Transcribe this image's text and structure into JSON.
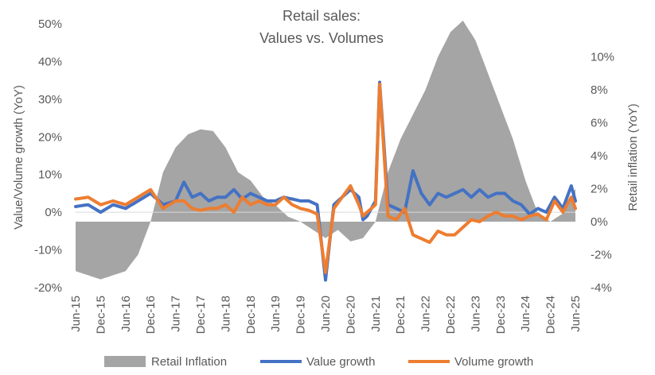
{
  "chart_data": {
    "type": "line",
    "title_lines": [
      "Retail sales:",
      "Values vs. Volumes"
    ],
    "ylabel_left": "Value/Volume  growth (YoY)",
    "ylabel_right": "Retail inflation (YoY)",
    "ylim_left": [
      -20,
      50
    ],
    "ylim_right": [
      -4,
      12
    ],
    "yticks_left": [
      "-20%",
      "-10%",
      "0%",
      "10%",
      "20%",
      "30%",
      "40%",
      "50%"
    ],
    "yticks_right": [
      "-4%",
      "-2%",
      "0%",
      "2%",
      "4%",
      "6%",
      "8%",
      "10%"
    ],
    "xticks": [
      "Jun-15",
      "Dec-15",
      "Jun-16",
      "Dec-16",
      "Jun-17",
      "Dec-17",
      "Jun-18",
      "Dec-18",
      "Jun-19",
      "Dec-19",
      "Jun-20",
      "Dec-20",
      "Jun-21",
      "Dec-21",
      "Jun-22",
      "Dec-22",
      "Jun-23",
      "Dec-23",
      "Jun-24",
      "Dec-24",
      "Jun-25"
    ],
    "legend_position": "bottom",
    "grid": false,
    "colors": {
      "inflation": "#a5a5a5",
      "value": "#4472c4",
      "volume": "#ed7d31"
    },
    "x_start": "Jun-15",
    "months": 121,
    "series": [
      {
        "name": "Retail Inflation",
        "kind": "area",
        "axis": "right",
        "keypoints": [
          [
            0,
            -3
          ],
          [
            6,
            -3.5
          ],
          [
            12,
            -3
          ],
          [
            15,
            -2
          ],
          [
            18,
            0
          ],
          [
            21,
            3
          ],
          [
            24,
            4.5
          ],
          [
            27,
            5.3
          ],
          [
            30,
            5.6
          ],
          [
            33,
            5.5
          ],
          [
            36,
            4.5
          ],
          [
            39,
            3
          ],
          [
            42,
            2.5
          ],
          [
            45,
            1.5
          ],
          [
            48,
            1
          ],
          [
            51,
            0.3
          ],
          [
            54,
            0
          ],
          [
            57,
            -0.5
          ],
          [
            60,
            -1
          ],
          [
            63,
            -0.5
          ],
          [
            66,
            -1.2
          ],
          [
            69,
            -1
          ],
          [
            72,
            0
          ],
          [
            75,
            3
          ],
          [
            78,
            5
          ],
          [
            81,
            6.5
          ],
          [
            84,
            8
          ],
          [
            87,
            10
          ],
          [
            90,
            11.5
          ],
          [
            93,
            12.2
          ],
          [
            96,
            11
          ],
          [
            99,
            9
          ],
          [
            102,
            7
          ],
          [
            105,
            5
          ],
          [
            108,
            2.5
          ],
          [
            111,
            0.5
          ],
          [
            114,
            0
          ],
          [
            117,
            0.5
          ],
          [
            120,
            2
          ]
        ]
      },
      {
        "name": "Value growth",
        "kind": "line",
        "axis": "left",
        "keypoints": [
          [
            0,
            1.5
          ],
          [
            3,
            2
          ],
          [
            6,
            0
          ],
          [
            9,
            2
          ],
          [
            12,
            1
          ],
          [
            15,
            3
          ],
          [
            18,
            5
          ],
          [
            21,
            2
          ],
          [
            24,
            3
          ],
          [
            26,
            8
          ],
          [
            28,
            4
          ],
          [
            30,
            5
          ],
          [
            32,
            3
          ],
          [
            34,
            4
          ],
          [
            36,
            4
          ],
          [
            38,
            6
          ],
          [
            40,
            3.5
          ],
          [
            42,
            5
          ],
          [
            44,
            4
          ],
          [
            46,
            3
          ],
          [
            48,
            3
          ],
          [
            50,
            4
          ],
          [
            52,
            3.5
          ],
          [
            54,
            3
          ],
          [
            56,
            3
          ],
          [
            58,
            2
          ],
          [
            60,
            -18
          ],
          [
            62,
            2
          ],
          [
            64,
            4
          ],
          [
            66,
            6
          ],
          [
            68,
            4
          ],
          [
            69,
            -2
          ],
          [
            70,
            -1
          ],
          [
            72,
            3
          ],
          [
            73,
            34.5
          ],
          [
            75,
            2
          ],
          [
            77,
            1
          ],
          [
            79,
            0
          ],
          [
            81,
            11
          ],
          [
            83,
            5
          ],
          [
            85,
            2
          ],
          [
            87,
            5
          ],
          [
            89,
            4
          ],
          [
            91,
            5
          ],
          [
            93,
            6
          ],
          [
            95,
            4
          ],
          [
            97,
            6
          ],
          [
            99,
            4
          ],
          [
            101,
            5
          ],
          [
            103,
            5
          ],
          [
            105,
            3
          ],
          [
            107,
            2
          ],
          [
            109,
            -0.5
          ],
          [
            111,
            1
          ],
          [
            113,
            0
          ],
          [
            115,
            4
          ],
          [
            117,
            1
          ],
          [
            119,
            7
          ],
          [
            120,
            3
          ]
        ]
      },
      {
        "name": "Volume growth",
        "kind": "line",
        "axis": "left",
        "keypoints": [
          [
            0,
            3.5
          ],
          [
            3,
            4
          ],
          [
            6,
            2
          ],
          [
            9,
            3
          ],
          [
            12,
            2
          ],
          [
            15,
            4
          ],
          [
            18,
            6
          ],
          [
            21,
            1
          ],
          [
            24,
            3
          ],
          [
            26,
            3
          ],
          [
            28,
            1
          ],
          [
            30,
            0.5
          ],
          [
            32,
            1
          ],
          [
            34,
            1
          ],
          [
            36,
            2
          ],
          [
            38,
            0
          ],
          [
            40,
            4
          ],
          [
            42,
            2
          ],
          [
            44,
            3
          ],
          [
            46,
            2
          ],
          [
            48,
            2
          ],
          [
            50,
            4
          ],
          [
            52,
            2
          ],
          [
            54,
            1
          ],
          [
            56,
            0.5
          ],
          [
            58,
            -0.5
          ],
          [
            60,
            -16
          ],
          [
            62,
            1
          ],
          [
            64,
            4
          ],
          [
            66,
            7
          ],
          [
            68,
            2
          ],
          [
            69,
            -1
          ],
          [
            70,
            0
          ],
          [
            72,
            2
          ],
          [
            73,
            34
          ],
          [
            75,
            -1
          ],
          [
            77,
            -2
          ],
          [
            79,
            1
          ],
          [
            81,
            -6
          ],
          [
            83,
            -7
          ],
          [
            85,
            -8
          ],
          [
            87,
            -5
          ],
          [
            89,
            -6
          ],
          [
            91,
            -6
          ],
          [
            93,
            -4
          ],
          [
            95,
            -2
          ],
          [
            97,
            -2.5
          ],
          [
            99,
            -1
          ],
          [
            101,
            0
          ],
          [
            103,
            -1
          ],
          [
            105,
            -1
          ],
          [
            107,
            -2
          ],
          [
            109,
            -1
          ],
          [
            111,
            -0.5
          ],
          [
            113,
            -2
          ],
          [
            115,
            3
          ],
          [
            117,
            0
          ],
          [
            119,
            4
          ],
          [
            120,
            1
          ]
        ]
      }
    ]
  }
}
